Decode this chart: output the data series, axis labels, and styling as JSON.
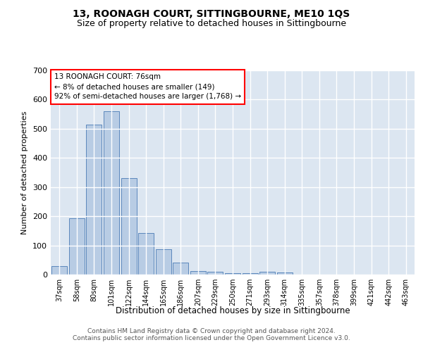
{
  "title": "13, ROONAGH COURT, SITTINGBOURNE, ME10 1QS",
  "subtitle": "Size of property relative to detached houses in Sittingbourne",
  "xlabel": "Distribution of detached houses by size in Sittingbourne",
  "ylabel": "Number of detached properties",
  "categories": [
    "37sqm",
    "58sqm",
    "80sqm",
    "101sqm",
    "122sqm",
    "144sqm",
    "165sqm",
    "186sqm",
    "207sqm",
    "229sqm",
    "250sqm",
    "271sqm",
    "293sqm",
    "314sqm",
    "335sqm",
    "357sqm",
    "378sqm",
    "399sqm",
    "421sqm",
    "442sqm",
    "463sqm"
  ],
  "values": [
    30,
    192,
    515,
    560,
    330,
    143,
    87,
    40,
    13,
    10,
    5,
    5,
    10,
    8,
    0,
    0,
    0,
    0,
    0,
    0,
    0
  ],
  "bar_color": "#b8cce4",
  "bar_edge_color": "#4a7ab5",
  "highlight_index": 1,
  "annotation_text": "13 ROONAGH COURT: 76sqm\n← 8% of detached houses are smaller (149)\n92% of semi-detached houses are larger (1,768) →",
  "annotation_box_color": "white",
  "annotation_box_edge": "red",
  "footer_text": "Contains HM Land Registry data © Crown copyright and database right 2024.\nContains public sector information licensed under the Open Government Licence v3.0.",
  "ylim": [
    0,
    700
  ],
  "yticks": [
    0,
    100,
    200,
    300,
    400,
    500,
    600,
    700
  ],
  "background_color": "#dce6f1",
  "grid_color": "white",
  "title_fontsize": 10,
  "subtitle_fontsize": 9,
  "footer_fontsize": 6.5
}
